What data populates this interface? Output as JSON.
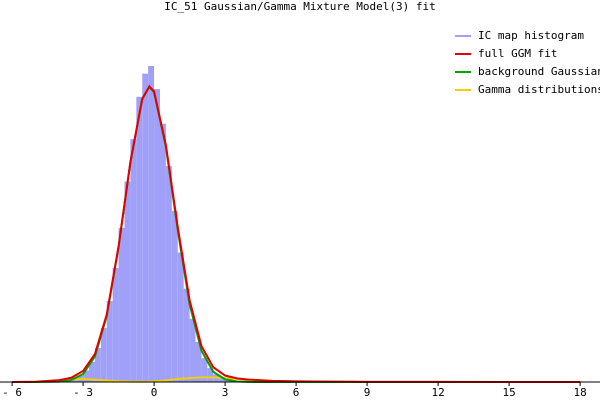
{
  "chart_data": {
    "type": "histogram",
    "title": "IC_51 Gaussian/Gamma Mixture Model(3) fit",
    "xlim": [
      -6.51,
      18.84
    ],
    "ylim": [
      0,
      0.48
    ],
    "xticks": [
      {
        "value": -6,
        "label": "- 6"
      },
      {
        "value": -3,
        "label": "- 3"
      },
      0,
      3,
      6,
      9,
      12,
      15,
      18
    ],
    "legend": "top-right",
    "histogram": {
      "name": "IC map histogram",
      "color": "#a0a0f8",
      "bins": [
        -4,
        -3.75,
        -3.5,
        -3.25,
        -3,
        -2.75,
        -2.5,
        -2.25,
        -2,
        -1.75,
        -1.5,
        -1.25,
        -1,
        -0.75,
        -0.5,
        -0.25,
        0,
        0.25,
        0.5,
        0.75,
        1,
        1.25,
        1.5,
        1.75,
        2,
        2.25,
        2.5,
        2.75,
        3,
        3.25,
        3.5,
        3.75,
        4
      ],
      "values": [
        0.001,
        0.002,
        0.004,
        0.008,
        0.015,
        0.026,
        0.044,
        0.07,
        0.105,
        0.148,
        0.2,
        0.26,
        0.315,
        0.37,
        0.4,
        0.41,
        0.38,
        0.335,
        0.28,
        0.222,
        0.168,
        0.121,
        0.082,
        0.052,
        0.031,
        0.018,
        0.01,
        0.005,
        0.003,
        0.0015,
        0.0008,
        0.0004
      ]
    },
    "x": [
      -6,
      -5,
      -4,
      -3.5,
      -3,
      -2.5,
      -2,
      -1.5,
      -1,
      -0.5,
      -0.2,
      0,
      0.5,
      1,
      1.5,
      2,
      2.5,
      3,
      3.5,
      4,
      5,
      6,
      9,
      12,
      15,
      18
    ],
    "series": [
      {
        "name": "full GGM fit",
        "type": "line",
        "color": "#e00000",
        "values": [
          0,
          0.0003,
          0.0025,
          0.0055,
          0.0142,
          0.0362,
          0.0876,
          0.176,
          0.2855,
          0.3673,
          0.3835,
          0.377,
          0.307,
          0.201,
          0.106,
          0.0468,
          0.0192,
          0.0084,
          0.0047,
          0.0031,
          0.0015,
          0.0008,
          0.0002,
          0.0001,
          0,
          0
        ]
      },
      {
        "name": "background Gaussian",
        "type": "line",
        "color": "#00a000",
        "values": [
          0,
          0,
          0.0005,
          0.0025,
          0.0102,
          0.0332,
          0.0856,
          0.175,
          0.285,
          0.367,
          0.383,
          0.376,
          0.305,
          0.197,
          0.101,
          0.0408,
          0.0132,
          0.0034,
          0.0007,
          0.0001,
          0,
          0,
          0,
          0,
          0,
          0
        ]
      },
      {
        "name": "Gamma distributions",
        "type": "line",
        "color": "#f0d000",
        "values": [
          0,
          0.0003,
          0.002,
          0.003,
          0.004,
          0.003,
          0.002,
          0.001,
          0.0005,
          0.0003,
          0.0005,
          0.001,
          0.002,
          0.004,
          0.005,
          0.006,
          0.006,
          0.005,
          0.004,
          0.003,
          0.0015,
          0.0008,
          0.0002,
          0.0001,
          0,
          0
        ]
      }
    ]
  }
}
